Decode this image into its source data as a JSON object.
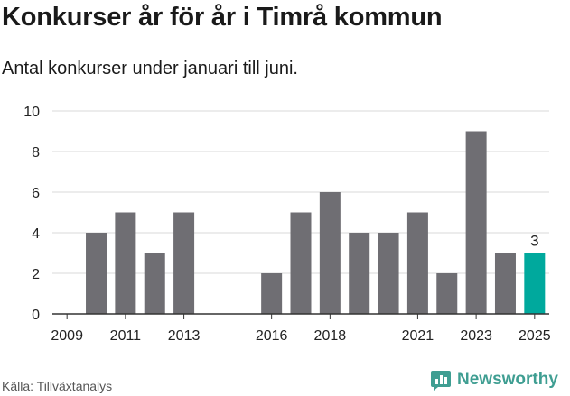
{
  "title": "Konkurser år för år i Timrå kommun",
  "subtitle": "Antal konkurser under januari till juni.",
  "source": "Källa: Tillväxtanalys",
  "brand": {
    "name": "Newsworthy",
    "icon": "bar-chart-logo-icon",
    "color": "#3f9e92"
  },
  "colors": {
    "bar": "#6f6e73",
    "highlight": "#00a99d",
    "grid": "#d8d8d8",
    "axis": "#333333"
  },
  "chart_data": {
    "type": "bar",
    "x": [
      2009,
      2010,
      2011,
      2012,
      2013,
      2014,
      2015,
      2016,
      2017,
      2018,
      2019,
      2020,
      2021,
      2022,
      2023,
      2024,
      2025
    ],
    "values": [
      0,
      4,
      5,
      3,
      5,
      0,
      0,
      2,
      5,
      6,
      4,
      4,
      5,
      2,
      9,
      3,
      3
    ],
    "tick_labels": [
      "2009",
      "2011",
      "2013",
      "2016",
      "2018",
      "2021",
      "2023",
      "2025"
    ],
    "highlight": {
      "x": 2025,
      "label": "3"
    },
    "ylim": [
      0,
      10
    ],
    "yticks": [
      0,
      2,
      4,
      6,
      8,
      10
    ],
    "grid": true,
    "legend": "none"
  }
}
